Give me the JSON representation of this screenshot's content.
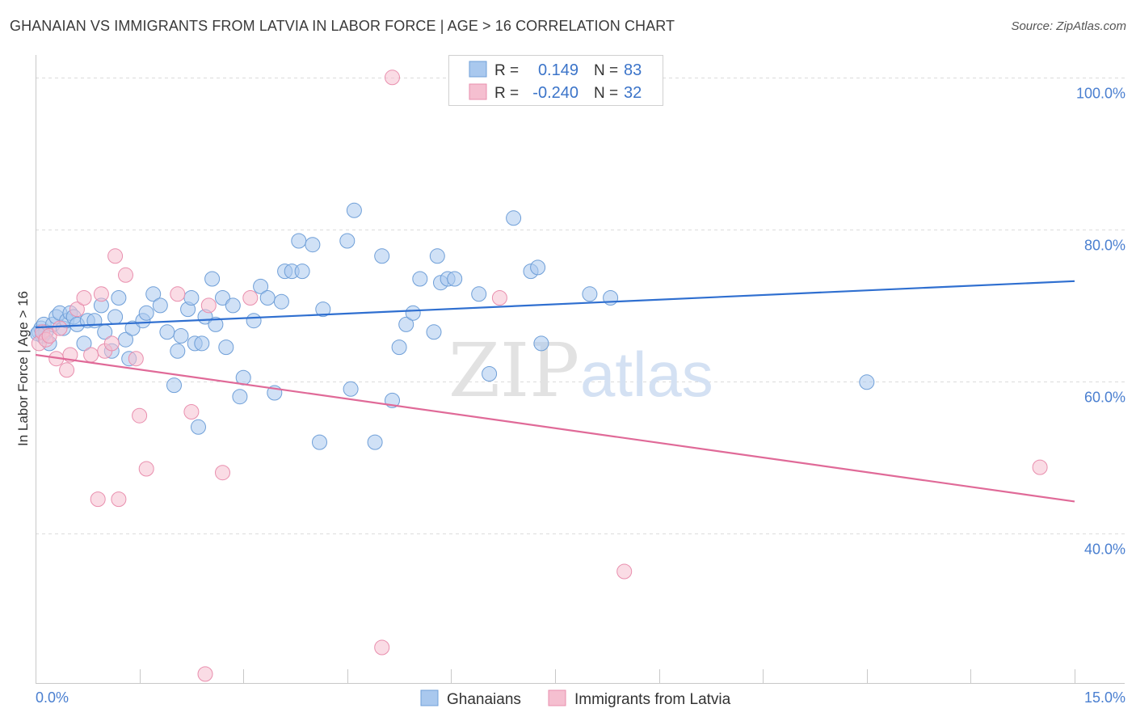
{
  "header": {
    "title": "GHANAIAN VS IMMIGRANTS FROM LATVIA IN LABOR FORCE | AGE > 16 CORRELATION CHART",
    "source": "Source: ZipAtlas.com"
  },
  "colors": {
    "blue_fill": "#a9c8ee",
    "blue_stroke": "#6f9fd8",
    "blue_line": "#2f6fd0",
    "pink_fill": "#f5bfd0",
    "pink_stroke": "#e98fae",
    "pink_line": "#e06a98",
    "grid": "#dcdcdc",
    "tick_text": "#4a7fd0"
  },
  "stats": {
    "rows": [
      {
        "r_label": "R =",
        "r_value": "0.149",
        "n_label": "N =",
        "n_value": "83"
      },
      {
        "r_label": "R =",
        "r_value": "-0.240",
        "n_label": "N =",
        "n_value": "32"
      }
    ]
  },
  "watermark": {
    "zip": "ZIP",
    "atlas": "atlas"
  },
  "chart_data": {
    "type": "scatter",
    "ylabel": "In Labor Force | Age > 16",
    "xlim": [
      0,
      15
    ],
    "ylim": [
      20,
      102
    ],
    "x_tick_labels": [
      "0.0%",
      "15.0%"
    ],
    "y_ticks": [
      {
        "value": 100,
        "label": "100.0%"
      },
      {
        "value": 80,
        "label": "80.0%"
      },
      {
        "value": 60,
        "label": "60.0%"
      },
      {
        "value": 40,
        "label": "40.0%"
      }
    ],
    "grid": true,
    "legend_position": "bottom-center",
    "series": [
      {
        "name": "Ghanaians",
        "color_key": "blue",
        "trend": {
          "x": [
            0,
            15
          ],
          "y": [
            67.1,
            73.2
          ]
        },
        "points": [
          [
            0.05,
            66.5
          ],
          [
            0.08,
            67.0
          ],
          [
            0.1,
            66.0
          ],
          [
            0.12,
            67.5
          ],
          [
            0.15,
            66.5
          ],
          [
            0.2,
            65.0
          ],
          [
            0.25,
            67.5
          ],
          [
            0.3,
            68.5
          ],
          [
            0.35,
            69.0
          ],
          [
            0.4,
            67.0
          ],
          [
            0.45,
            68.0
          ],
          [
            0.5,
            69.0
          ],
          [
            0.55,
            68.5
          ],
          [
            0.6,
            67.5
          ],
          [
            0.75,
            68.0
          ],
          [
            0.7,
            65.0
          ],
          [
            0.85,
            68.0
          ],
          [
            0.95,
            70.0
          ],
          [
            1.0,
            66.5
          ],
          [
            1.1,
            64.0
          ],
          [
            1.15,
            68.5
          ],
          [
            1.2,
            71.0
          ],
          [
            1.3,
            65.5
          ],
          [
            1.35,
            63.0
          ],
          [
            1.4,
            67.0
          ],
          [
            1.55,
            68.0
          ],
          [
            1.6,
            69.0
          ],
          [
            1.7,
            71.5
          ],
          [
            1.8,
            70.0
          ],
          [
            1.9,
            66.5
          ],
          [
            2.0,
            59.5
          ],
          [
            2.05,
            64.0
          ],
          [
            2.1,
            66.0
          ],
          [
            2.2,
            69.5
          ],
          [
            2.25,
            71.0
          ],
          [
            2.3,
            65.0
          ],
          [
            2.35,
            54.0
          ],
          [
            2.4,
            65.0
          ],
          [
            2.45,
            68.5
          ],
          [
            2.55,
            73.5
          ],
          [
            2.6,
            67.5
          ],
          [
            2.7,
            71.0
          ],
          [
            2.75,
            64.5
          ],
          [
            2.85,
            70.0
          ],
          [
            2.95,
            58.0
          ],
          [
            3.0,
            60.5
          ],
          [
            3.15,
            68.0
          ],
          [
            3.25,
            72.5
          ],
          [
            3.35,
            71.0
          ],
          [
            3.45,
            58.5
          ],
          [
            3.55,
            70.5
          ],
          [
            3.6,
            74.5
          ],
          [
            3.7,
            74.5
          ],
          [
            3.8,
            78.5
          ],
          [
            3.85,
            74.5
          ],
          [
            4.0,
            78.0
          ],
          [
            4.1,
            52.0
          ],
          [
            4.15,
            69.5
          ],
          [
            4.5,
            78.5
          ],
          [
            4.55,
            59.0
          ],
          [
            4.6,
            82.5
          ],
          [
            4.9,
            52.0
          ],
          [
            5.0,
            76.5
          ],
          [
            5.15,
            57.5
          ],
          [
            5.25,
            64.5
          ],
          [
            5.35,
            67.5
          ],
          [
            5.45,
            69.0
          ],
          [
            5.55,
            73.5
          ],
          [
            5.75,
            66.5
          ],
          [
            5.8,
            76.5
          ],
          [
            5.85,
            73.0
          ],
          [
            5.95,
            73.5
          ],
          [
            6.05,
            73.5
          ],
          [
            6.4,
            71.5
          ],
          [
            6.55,
            61.0
          ],
          [
            6.9,
            81.5
          ],
          [
            7.15,
            74.5
          ],
          [
            7.25,
            75.0
          ],
          [
            7.3,
            65.0
          ],
          [
            8.0,
            71.5
          ],
          [
            8.3,
            71.0
          ],
          [
            12.0,
            59.9
          ],
          [
            0.03,
            66.3
          ]
        ]
      },
      {
        "name": "Immigrants from Latvia",
        "color_key": "pink",
        "trend": {
          "x": [
            0,
            15
          ],
          "y": [
            63.5,
            44.2
          ]
        },
        "points": [
          [
            0.05,
            65.0
          ],
          [
            0.1,
            66.5
          ],
          [
            0.15,
            65.5
          ],
          [
            0.2,
            66.0
          ],
          [
            0.3,
            63.0
          ],
          [
            0.35,
            67.0
          ],
          [
            0.45,
            61.5
          ],
          [
            0.5,
            63.5
          ],
          [
            0.6,
            69.5
          ],
          [
            0.7,
            71.0
          ],
          [
            0.8,
            63.5
          ],
          [
            0.9,
            44.5
          ],
          [
            0.95,
            71.5
          ],
          [
            1.0,
            64.0
          ],
          [
            1.1,
            65.0
          ],
          [
            1.15,
            76.5
          ],
          [
            1.2,
            44.5
          ],
          [
            1.3,
            74.0
          ],
          [
            1.45,
            63.0
          ],
          [
            1.5,
            55.5
          ],
          [
            1.6,
            48.5
          ],
          [
            2.05,
            71.5
          ],
          [
            2.25,
            56.0
          ],
          [
            2.45,
            21.5
          ],
          [
            2.5,
            70.0
          ],
          [
            2.7,
            48.0
          ],
          [
            3.1,
            71.0
          ],
          [
            5.0,
            25.0
          ],
          [
            5.15,
            100.0
          ],
          [
            6.7,
            71.0
          ],
          [
            8.5,
            35.0
          ],
          [
            14.5,
            48.7
          ]
        ]
      }
    ]
  }
}
